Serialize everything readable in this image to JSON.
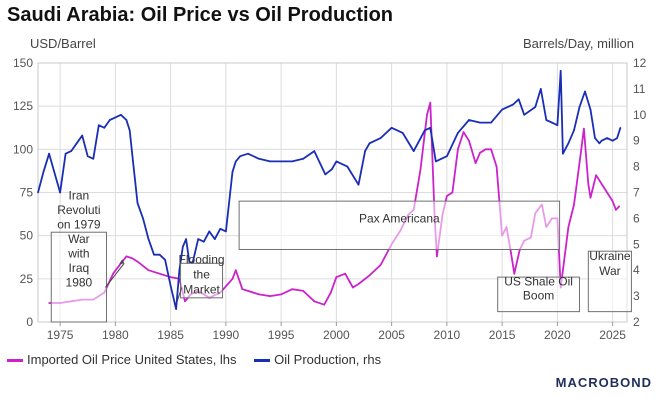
{
  "title": "Saudi Arabia: Oil Price vs Oil Production",
  "brand": {
    "text": "MACROBOND",
    "accent": "#e07b1c",
    "color": "#1f2f5a"
  },
  "chart_data": {
    "type": "line",
    "title": "Saudi Arabia: Oil Price vs Oil Production",
    "left_axis_label": "USD/Barrel",
    "right_axis_label": "Barrels/Day, million",
    "ylim_left": [
      0,
      150
    ],
    "yticks_left": [
      0,
      25,
      50,
      75,
      100,
      125,
      150
    ],
    "ylim_right": [
      2,
      12
    ],
    "yticks_right": [
      2,
      3,
      4,
      5,
      6,
      7,
      8,
      9,
      10,
      11,
      12
    ],
    "xlim": [
      1973,
      2026.3
    ],
    "xticks": [
      1975,
      1980,
      1985,
      1990,
      1995,
      2000,
      2005,
      2010,
      2015,
      2020,
      2025
    ],
    "grid": true,
    "series": [
      {
        "name": "Imported Oil Price United States, lhs",
        "axis": "left",
        "color": "#cc22cc",
        "x": [
          1974,
          1975,
          1976,
          1977,
          1978,
          1979,
          1979.8,
          1980.5,
          1981,
          1981.5,
          1982,
          1983,
          1984,
          1985,
          1985.8,
          1986.3,
          1986.8,
          1987.5,
          1988.5,
          1989.5,
          1990.6,
          1990.9,
          1991.5,
          1992,
          1993,
          1994,
          1995,
          1996,
          1997,
          1998,
          1998.9,
          1999.5,
          2000,
          2000.8,
          2001.5,
          2002,
          2003,
          2004,
          2005,
          2005.8,
          2006.5,
          2007,
          2007.6,
          2008.2,
          2008.5,
          2008.9,
          2009.1,
          2009.6,
          2010,
          2010.5,
          2011,
          2011.5,
          2012,
          2012.6,
          2013,
          2013.5,
          2014,
          2014.5,
          2015,
          2015.4,
          2015.8,
          2016.1,
          2016.6,
          2017,
          2017.6,
          2018,
          2018.6,
          2019,
          2019.5,
          2020,
          2020.3,
          2020.6,
          2021,
          2021.5,
          2022,
          2022.4,
          2022.8,
          2023,
          2023.5,
          2024,
          2024.5,
          2025,
          2025.3,
          2025.6
        ],
        "values": [
          11,
          11,
          12,
          13,
          13,
          17,
          28,
          34,
          38,
          37,
          35,
          30,
          28,
          26,
          25,
          12,
          16,
          18,
          14,
          17,
          25,
          30,
          19,
          18,
          16,
          15,
          16,
          19,
          18,
          12,
          10,
          17,
          26,
          28,
          20,
          22,
          27,
          33,
          45,
          53,
          62,
          65,
          88,
          120,
          127,
          60,
          38,
          62,
          73,
          75,
          100,
          110,
          105,
          92,
          98,
          100,
          100,
          90,
          50,
          55,
          40,
          28,
          42,
          47,
          49,
          63,
          68,
          55,
          60,
          60,
          20,
          35,
          55,
          68,
          92,
          112,
          80,
          72,
          85,
          80,
          75,
          70,
          65,
          67
        ]
      },
      {
        "name": "Oil Production, rhs",
        "axis": "right",
        "color": "#1a2eb5",
        "x": [
          1973,
          1973.5,
          1974,
          1974.6,
          1975,
          1975.5,
          1976,
          1976.5,
          1977,
          1977.5,
          1978,
          1978.5,
          1979,
          1979.5,
          1980,
          1980.5,
          1981,
          1981.3,
          1981.6,
          1982,
          1982.5,
          1983,
          1983.5,
          1984,
          1984.5,
          1985,
          1985.5,
          1985.8,
          1986.1,
          1986.4,
          1986.7,
          1987,
          1987.5,
          1988,
          1988.5,
          1989,
          1989.5,
          1990,
          1990.6,
          1990.9,
          1991.3,
          1992,
          1993,
          1994,
          1995,
          1996,
          1997,
          1998,
          1999,
          1999.6,
          2000,
          2001,
          2002,
          2002.6,
          2003,
          2004,
          2005,
          2006,
          2007,
          2008,
          2008.5,
          2009,
          2009.5,
          2010,
          2011,
          2012,
          2013,
          2014,
          2015,
          2016,
          2016.5,
          2017,
          2018,
          2018.5,
          2019,
          2019.5,
          2020,
          2020.3,
          2020.5,
          2021,
          2021.5,
          2022,
          2022.5,
          2023,
          2023.4,
          2023.8,
          2024,
          2024.5,
          2025,
          2025.4,
          2025.7
        ],
        "values": [
          7,
          7.8,
          8.5,
          7.6,
          7,
          8.5,
          8.6,
          8.9,
          9.2,
          8.4,
          8.3,
          9.6,
          9.5,
          9.8,
          9.9,
          10,
          9.8,
          9.4,
          8.2,
          6.6,
          6.0,
          5.2,
          4.6,
          4.6,
          4.4,
          3.4,
          2.5,
          4.0,
          4.9,
          5.2,
          4.3,
          4.3,
          5.2,
          5.1,
          5.5,
          5.2,
          5.6,
          5.5,
          7.8,
          8.2,
          8.4,
          8.5,
          8.3,
          8.2,
          8.2,
          8.2,
          8.3,
          8.6,
          7.7,
          7.9,
          8.2,
          8.0,
          7.3,
          8.6,
          8.9,
          9.1,
          9.5,
          9.3,
          8.6,
          9.4,
          9.5,
          8.2,
          8.3,
          8.4,
          9.3,
          9.8,
          9.7,
          9.7,
          10.2,
          10.4,
          10.6,
          10.0,
          10.3,
          11.0,
          9.8,
          9.7,
          9.6,
          11.7,
          8.5,
          8.9,
          9.4,
          10.3,
          10.9,
          10.2,
          9.1,
          8.9,
          9.0,
          9.1,
          9.0,
          9.1,
          9.5
        ]
      }
    ],
    "annotations": [
      {
        "id": "iran",
        "text": "Iran Revoluti on 1979 War with Iraq 1980",
        "lines": [
          "Iran",
          "Revoluti",
          "on 1979",
          "War",
          "with",
          "Iraq",
          "1980"
        ]
      },
      {
        "id": "flooding",
        "text": "Flooding the Market",
        "lines": [
          "Flooding",
          "the",
          "Market"
        ]
      },
      {
        "id": "pax",
        "text": "Pax Americana",
        "lines": [
          "Pax Americana"
        ]
      },
      {
        "id": "shale",
        "text": "US Shale Oil Boom",
        "lines": [
          "US Shale Oil",
          "Boom"
        ]
      },
      {
        "id": "ukraine",
        "text": "Ukraine War",
        "lines": [
          "Ukraine",
          "War"
        ]
      }
    ]
  }
}
